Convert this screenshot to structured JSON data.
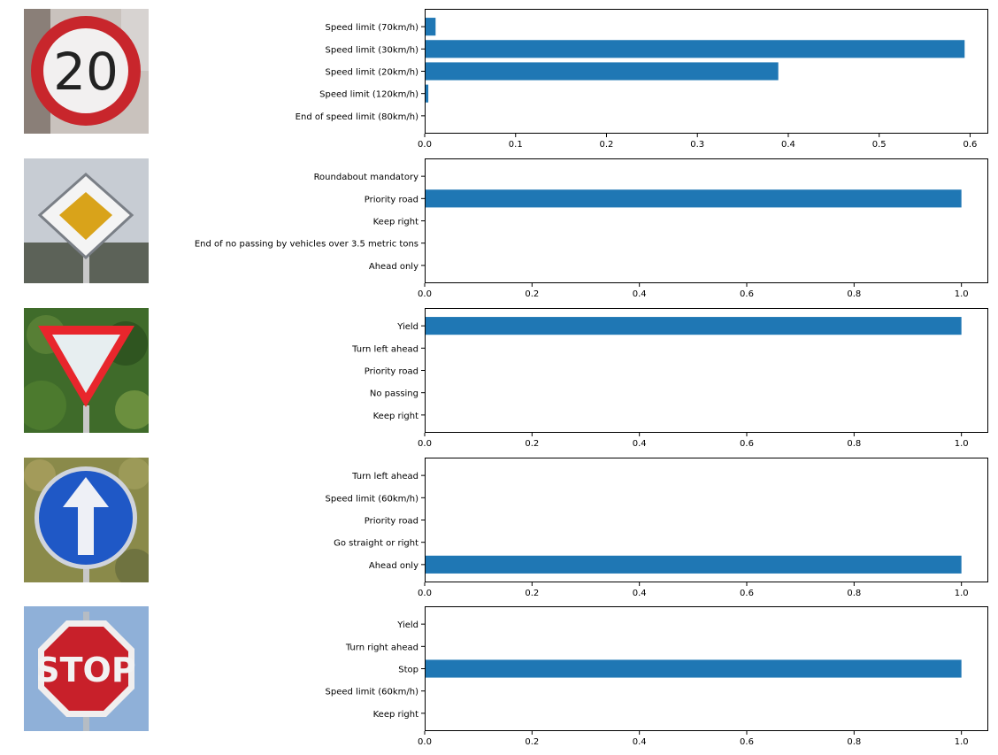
{
  "chart_data": [
    {
      "type": "bar",
      "orientation": "horizontal",
      "title": "",
      "xlabel": "",
      "ylabel": "",
      "categories": [
        "Speed limit (70km/h)",
        "Speed limit (30km/h)",
        "Speed limit (20km/h)",
        "Speed limit (120km/h)",
        "End of speed limit (80km/h)"
      ],
      "values": [
        0.012,
        0.594,
        0.389,
        0.004,
        0.0005
      ],
      "xlim": [
        0,
        0.62
      ],
      "xticks": [
        0.0,
        0.1,
        0.2,
        0.3,
        0.4,
        0.5,
        0.6
      ],
      "xtick_labels": [
        "0.0",
        "0.1",
        "0.2",
        "0.3",
        "0.4",
        "0.5",
        "0.6"
      ],
      "color": "#1f77b4",
      "grid": false,
      "image": {
        "name": "speed-limit-20-sign-icon",
        "text": "20"
      }
    },
    {
      "type": "bar",
      "orientation": "horizontal",
      "title": "",
      "xlabel": "",
      "ylabel": "",
      "categories": [
        "Roundabout mandatory",
        "Priority road",
        "Keep right",
        "End of no passing by vehicles over 3.5 metric tons",
        "Ahead only"
      ],
      "values": [
        0.0,
        1.0,
        0.0,
        0.0,
        0.0
      ],
      "xlim": [
        0,
        1.05
      ],
      "xticks": [
        0.0,
        0.2,
        0.4,
        0.6,
        0.8,
        1.0
      ],
      "xtick_labels": [
        "0.0",
        "0.2",
        "0.4",
        "0.6",
        "0.8",
        "1.0"
      ],
      "color": "#1f77b4",
      "grid": false,
      "image": {
        "name": "priority-road-sign-icon",
        "text": ""
      }
    },
    {
      "type": "bar",
      "orientation": "horizontal",
      "title": "",
      "xlabel": "",
      "ylabel": "",
      "categories": [
        "Yield",
        "Turn left ahead",
        "Priority road",
        "No passing",
        "Keep right"
      ],
      "values": [
        1.0,
        0.0,
        0.0,
        0.0,
        0.0
      ],
      "xlim": [
        0,
        1.05
      ],
      "xticks": [
        0.0,
        0.2,
        0.4,
        0.6,
        0.8,
        1.0
      ],
      "xtick_labels": [
        "0.0",
        "0.2",
        "0.4",
        "0.6",
        "0.8",
        "1.0"
      ],
      "color": "#1f77b4",
      "grid": false,
      "image": {
        "name": "yield-sign-icon",
        "text": ""
      }
    },
    {
      "type": "bar",
      "orientation": "horizontal",
      "title": "",
      "xlabel": "",
      "ylabel": "",
      "categories": [
        "Turn left ahead",
        "Speed limit (60km/h)",
        "Priority road",
        "Go straight or right",
        "Ahead only"
      ],
      "values": [
        0.0,
        0.0,
        0.0,
        0.0,
        1.0
      ],
      "xlim": [
        0,
        1.05
      ],
      "xticks": [
        0.0,
        0.2,
        0.4,
        0.6,
        0.8,
        1.0
      ],
      "xtick_labels": [
        "0.0",
        "0.2",
        "0.4",
        "0.6",
        "0.8",
        "1.0"
      ],
      "color": "#1f77b4",
      "grid": false,
      "image": {
        "name": "ahead-only-sign-icon",
        "text": ""
      }
    },
    {
      "type": "bar",
      "orientation": "horizontal",
      "title": "",
      "xlabel": "",
      "ylabel": "",
      "categories": [
        "Yield",
        "Turn right ahead",
        "Stop",
        "Speed limit (60km/h)",
        "Keep right"
      ],
      "values": [
        0.0,
        0.0,
        1.0,
        0.0,
        0.0
      ],
      "xlim": [
        0,
        1.05
      ],
      "xticks": [
        0.0,
        0.2,
        0.4,
        0.6,
        0.8,
        1.0
      ],
      "xtick_labels": [
        "0.0",
        "0.2",
        "0.4",
        "0.6",
        "0.8",
        "1.0"
      ],
      "color": "#1f77b4",
      "grid": false,
      "image": {
        "name": "stop-sign-icon",
        "text": "STOP"
      }
    }
  ]
}
